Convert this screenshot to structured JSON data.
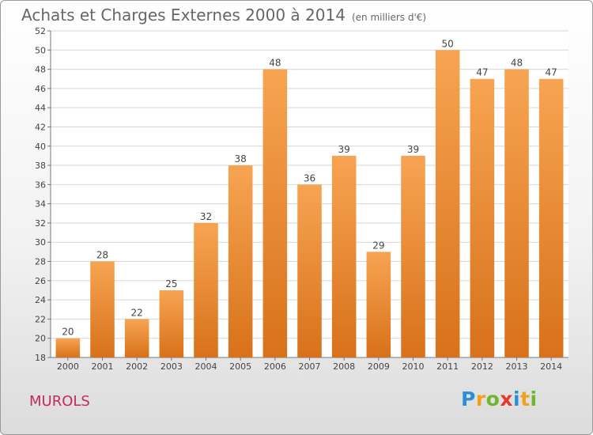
{
  "title": "Achats et Charges Externes 2000 à 2014",
  "unit": "(en milliers d'€)",
  "place": "MUROLS",
  "brand": {
    "letters": [
      "P",
      "r",
      "o",
      "x",
      "i",
      "t",
      "i"
    ],
    "colors": [
      "#2b8fd6",
      "#f0a01c",
      "#6fb62f",
      "#e8382e",
      "#2b8fd6",
      "#f0a01c",
      "#6fb62f"
    ]
  },
  "chart_data": {
    "type": "bar",
    "categories": [
      "2000",
      "2001",
      "2002",
      "2003",
      "2004",
      "2005",
      "2006",
      "2007",
      "2008",
      "2009",
      "2010",
      "2011",
      "2012",
      "2013",
      "2014"
    ],
    "values": [
      20,
      28,
      22,
      25,
      32,
      38,
      48,
      36,
      39,
      29,
      39,
      50,
      47,
      48,
      47
    ],
    "ylim": [
      18,
      52
    ],
    "yticks": [
      18,
      20,
      22,
      24,
      26,
      28,
      30,
      32,
      34,
      36,
      38,
      40,
      42,
      44,
      46,
      48,
      50,
      52
    ],
    "bar_color": "#f08a24",
    "grid": true
  }
}
